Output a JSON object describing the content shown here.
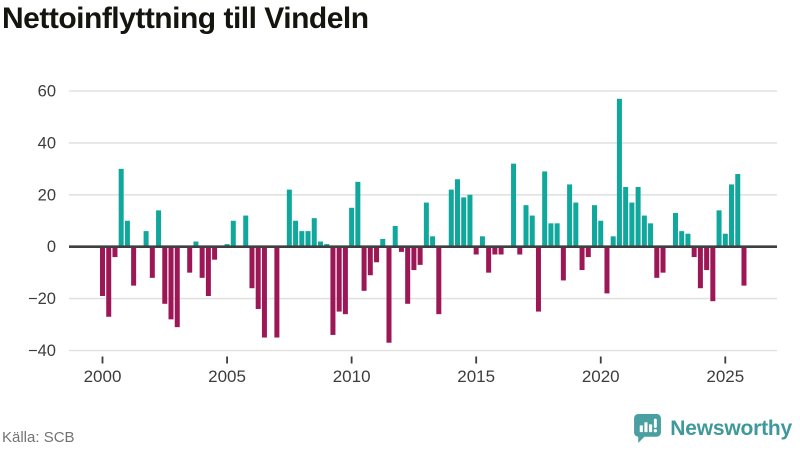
{
  "title": "Nettoinflyttning till Vindeln",
  "source": "Källa: SCB",
  "branding": {
    "logo_text": "Newsworthy",
    "logo_icon": "newsworthy-speech-bubble-chart-icon",
    "logo_color": "#4aa0a1",
    "logo_text_color": "#3f999b"
  },
  "colors": {
    "positive_bar": "#10a79c",
    "negative_bar": "#9d1656",
    "gridline": "#e2e2e2",
    "zero_line": "#3f3f3f",
    "axis_text": "#3d3d3d",
    "title_text": "#15150f",
    "source_text": "#737373",
    "background": "#ffffff"
  },
  "chart_data": {
    "type": "bar",
    "title": "Nettoinflyttning till Vindeln",
    "xlabel": "",
    "ylabel": "",
    "frequency": "quarterly",
    "start": "2000 Q1",
    "end": "2025 Q4",
    "values": [
      -19,
      -27,
      -4,
      30,
      10,
      -15,
      0,
      6,
      -12,
      14,
      -22,
      -28,
      -31,
      0,
      -10,
      2,
      -12,
      -19,
      -5,
      0,
      1,
      10,
      0,
      12,
      -16,
      -24,
      -35,
      0,
      -35,
      0,
      22,
      10,
      6,
      6,
      11,
      2,
      1,
      -34,
      -25,
      -26,
      15,
      25,
      -17,
      -11,
      -6,
      3,
      -37,
      8,
      -2,
      -22,
      -9,
      -7,
      17,
      4,
      -26,
      0,
      22,
      26,
      19,
      20,
      -3,
      4,
      -10,
      -3,
      -3,
      0,
      32,
      -3,
      16,
      12,
      -25,
      29,
      9,
      9,
      -13,
      24,
      17,
      -9,
      -4,
      16,
      10,
      -18,
      4,
      57,
      23,
      17,
      23,
      12,
      9,
      -12,
      -10,
      0,
      13,
      6,
      5,
      -4,
      -16,
      -9,
      -21,
      14,
      5,
      24,
      28,
      -15
    ],
    "x_tick_labels": [
      "2000",
      "2005",
      "2010",
      "2015",
      "2020",
      "2025"
    ],
    "y_ticks": [
      60,
      40,
      20,
      0,
      -20,
      -40
    ],
    "y_tick_labels": [
      "60",
      "40",
      "20",
      "0",
      "−20",
      "−40"
    ],
    "ylim": [
      -45,
      65
    ],
    "grid": "horizontal",
    "legend": "none"
  }
}
